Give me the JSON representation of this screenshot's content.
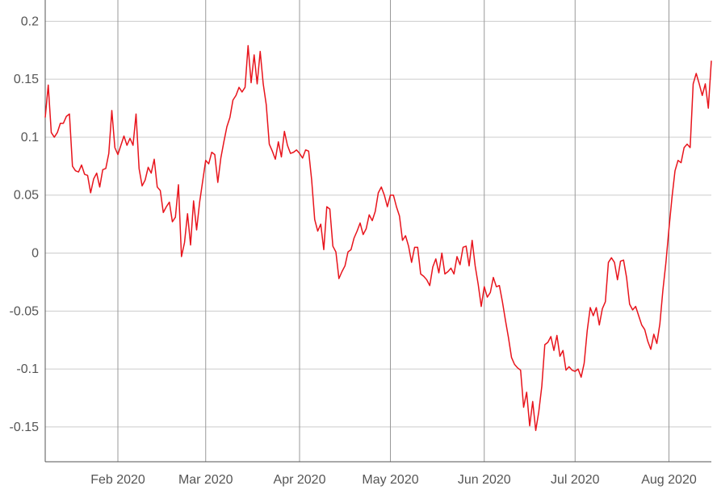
{
  "chart_data": {
    "type": "line",
    "title": "",
    "xlabel": "",
    "ylabel": "",
    "grid": true,
    "legend": "none",
    "line_color": "#e8141c",
    "grid_color": "#cccccc",
    "month_grid_color": "#999999",
    "axis_color": "#555555",
    "xlim": [
      "2020-01-08",
      "2020-08-09"
    ],
    "ylim": [
      -0.18,
      0.21
    ],
    "y_ticks": [
      {
        "value": 0.2,
        "label": "0.2"
      },
      {
        "value": 0.15,
        "label": "0.15"
      },
      {
        "value": 0.1,
        "label": "0.1"
      },
      {
        "value": 0.05,
        "label": "0.05"
      },
      {
        "value": 0,
        "label": "0"
      },
      {
        "value": -0.05,
        "label": "-0.05"
      },
      {
        "value": -0.1,
        "label": "-0.1"
      },
      {
        "value": -0.15,
        "label": "-0.15"
      }
    ],
    "x_ticks": [
      {
        "value": "2020-02-01",
        "label": "Feb 2020"
      },
      {
        "value": "2020-03-01",
        "label": "Mar 2020"
      },
      {
        "value": "2020-04-01",
        "label": "Apr 2020"
      },
      {
        "value": "2020-05-01",
        "label": "May 2020"
      },
      {
        "value": "2020-06-01",
        "label": "Jun 2020"
      },
      {
        "value": "2020-07-01",
        "label": "Jul 2020"
      },
      {
        "value": "2020-08-01",
        "label": "Aug 2020"
      }
    ],
    "series": [
      {
        "color": "#e8141c",
        "points": [
          [
            "2020-01-08",
            0.117
          ],
          [
            "2020-01-09",
            0.145
          ],
          [
            "2020-01-10",
            0.104
          ],
          [
            "2020-01-11",
            0.1
          ],
          [
            "2020-01-12",
            0.104
          ],
          [
            "2020-01-13",
            0.112
          ],
          [
            "2020-01-14",
            0.112
          ],
          [
            "2020-01-15",
            0.118
          ],
          [
            "2020-01-16",
            0.12
          ],
          [
            "2020-01-17",
            0.075
          ],
          [
            "2020-01-18",
            0.071
          ],
          [
            "2020-01-19",
            0.07
          ],
          [
            "2020-01-20",
            0.076
          ],
          [
            "2020-01-21",
            0.068
          ],
          [
            "2020-01-22",
            0.067
          ],
          [
            "2020-01-23",
            0.052
          ],
          [
            "2020-01-24",
            0.064
          ],
          [
            "2020-01-25",
            0.069
          ],
          [
            "2020-01-26",
            0.057
          ],
          [
            "2020-01-27",
            0.072
          ],
          [
            "2020-01-28",
            0.073
          ],
          [
            "2020-01-29",
            0.086
          ],
          [
            "2020-01-30",
            0.123
          ],
          [
            "2020-01-31",
            0.091
          ],
          [
            "2020-02-01",
            0.085
          ],
          [
            "2020-02-02",
            0.093
          ],
          [
            "2020-02-03",
            0.101
          ],
          [
            "2020-02-04",
            0.093
          ],
          [
            "2020-02-05",
            0.099
          ],
          [
            "2020-02-06",
            0.093
          ],
          [
            "2020-02-07",
            0.12
          ],
          [
            "2020-02-08",
            0.073
          ],
          [
            "2020-02-09",
            0.058
          ],
          [
            "2020-02-10",
            0.063
          ],
          [
            "2020-02-11",
            0.074
          ],
          [
            "2020-02-12",
            0.069
          ],
          [
            "2020-02-13",
            0.081
          ],
          [
            "2020-02-14",
            0.057
          ],
          [
            "2020-02-15",
            0.054
          ],
          [
            "2020-02-16",
            0.035
          ],
          [
            "2020-02-17",
            0.04
          ],
          [
            "2020-02-18",
            0.044
          ],
          [
            "2020-02-19",
            0.027
          ],
          [
            "2020-02-20",
            0.031
          ],
          [
            "2020-02-21",
            0.059
          ],
          [
            "2020-02-22",
            -0.003
          ],
          [
            "2020-02-23",
            0.009
          ],
          [
            "2020-02-24",
            0.034
          ],
          [
            "2020-02-25",
            0.007
          ],
          [
            "2020-02-26",
            0.045
          ],
          [
            "2020-02-27",
            0.02
          ],
          [
            "2020-02-28",
            0.044
          ],
          [
            "2020-02-29",
            0.062
          ],
          [
            "2020-03-01",
            0.08
          ],
          [
            "2020-03-02",
            0.077
          ],
          [
            "2020-03-03",
            0.087
          ],
          [
            "2020-03-04",
            0.085
          ],
          [
            "2020-03-05",
            0.061
          ],
          [
            "2020-03-06",
            0.082
          ],
          [
            "2020-03-07",
            0.096
          ],
          [
            "2020-03-08",
            0.109
          ],
          [
            "2020-03-09",
            0.117
          ],
          [
            "2020-03-10",
            0.132
          ],
          [
            "2020-03-11",
            0.136
          ],
          [
            "2020-03-12",
            0.143
          ],
          [
            "2020-03-13",
            0.139
          ],
          [
            "2020-03-14",
            0.143
          ],
          [
            "2020-03-15",
            0.179
          ],
          [
            "2020-03-16",
            0.147
          ],
          [
            "2020-03-17",
            0.171
          ],
          [
            "2020-03-18",
            0.146
          ],
          [
            "2020-03-19",
            0.174
          ],
          [
            "2020-03-20",
            0.146
          ],
          [
            "2020-03-21",
            0.128
          ],
          [
            "2020-03-22",
            0.094
          ],
          [
            "2020-03-23",
            0.088
          ],
          [
            "2020-03-24",
            0.081
          ],
          [
            "2020-03-25",
            0.096
          ],
          [
            "2020-03-26",
            0.083
          ],
          [
            "2020-03-27",
            0.105
          ],
          [
            "2020-03-28",
            0.093
          ],
          [
            "2020-03-29",
            0.086
          ],
          [
            "2020-03-30",
            0.087
          ],
          [
            "2020-03-31",
            0.089
          ],
          [
            "2020-04-01",
            0.086
          ],
          [
            "2020-04-02",
            0.082
          ],
          [
            "2020-04-03",
            0.089
          ],
          [
            "2020-04-04",
            0.088
          ],
          [
            "2020-04-05",
            0.063
          ],
          [
            "2020-04-06",
            0.029
          ],
          [
            "2020-04-07",
            0.019
          ],
          [
            "2020-04-08",
            0.025
          ],
          [
            "2020-04-09",
            0.003
          ],
          [
            "2020-04-10",
            0.04
          ],
          [
            "2020-04-11",
            0.038
          ],
          [
            "2020-04-12",
            0.006
          ],
          [
            "2020-04-13",
            0.001
          ],
          [
            "2020-04-14",
            -0.022
          ],
          [
            "2020-04-15",
            -0.016
          ],
          [
            "2020-04-16",
            -0.011
          ],
          [
            "2020-04-17",
            0.001
          ],
          [
            "2020-04-18",
            0.003
          ],
          [
            "2020-04-19",
            0.013
          ],
          [
            "2020-04-20",
            0.019
          ],
          [
            "2020-04-21",
            0.026
          ],
          [
            "2020-04-22",
            0.016
          ],
          [
            "2020-04-23",
            0.021
          ],
          [
            "2020-04-24",
            0.033
          ],
          [
            "2020-04-25",
            0.028
          ],
          [
            "2020-04-26",
            0.036
          ],
          [
            "2020-04-27",
            0.052
          ],
          [
            "2020-04-28",
            0.057
          ],
          [
            "2020-04-29",
            0.05
          ],
          [
            "2020-04-30",
            0.04
          ],
          [
            "2020-05-01",
            0.05
          ],
          [
            "2020-05-02",
            0.05
          ],
          [
            "2020-05-03",
            0.04
          ],
          [
            "2020-05-04",
            0.032
          ],
          [
            "2020-05-05",
            0.011
          ],
          [
            "2020-05-06",
            0.015
          ],
          [
            "2020-05-07",
            0.006
          ],
          [
            "2020-05-08",
            -0.008
          ],
          [
            "2020-05-09",
            0.005
          ],
          [
            "2020-05-10",
            0.005
          ],
          [
            "2020-05-11",
            -0.018
          ],
          [
            "2020-05-12",
            -0.02
          ],
          [
            "2020-05-13",
            -0.023
          ],
          [
            "2020-05-14",
            -0.028
          ],
          [
            "2020-05-15",
            -0.012
          ],
          [
            "2020-05-16",
            -0.005
          ],
          [
            "2020-05-17",
            -0.017
          ],
          [
            "2020-05-18",
            0.0
          ],
          [
            "2020-05-19",
            -0.018
          ],
          [
            "2020-05-20",
            -0.016
          ],
          [
            "2020-05-21",
            -0.013
          ],
          [
            "2020-05-22",
            -0.018
          ],
          [
            "2020-05-23",
            -0.003
          ],
          [
            "2020-05-24",
            -0.01
          ],
          [
            "2020-05-25",
            0.005
          ],
          [
            "2020-05-26",
            0.006
          ],
          [
            "2020-05-27",
            -0.011
          ],
          [
            "2020-05-28",
            0.011
          ],
          [
            "2020-05-29",
            -0.011
          ],
          [
            "2020-05-30",
            -0.027
          ],
          [
            "2020-05-31",
            -0.046
          ],
          [
            "2020-06-01",
            -0.029
          ],
          [
            "2020-06-02",
            -0.038
          ],
          [
            "2020-06-03",
            -0.034
          ],
          [
            "2020-06-04",
            -0.021
          ],
          [
            "2020-06-05",
            -0.029
          ],
          [
            "2020-06-06",
            -0.028
          ],
          [
            "2020-06-07",
            -0.042
          ],
          [
            "2020-06-08",
            -0.058
          ],
          [
            "2020-06-09",
            -0.073
          ],
          [
            "2020-06-10",
            -0.09
          ],
          [
            "2020-06-11",
            -0.096
          ],
          [
            "2020-06-12",
            -0.099
          ],
          [
            "2020-06-13",
            -0.101
          ],
          [
            "2020-06-14",
            -0.133
          ],
          [
            "2020-06-15",
            -0.12
          ],
          [
            "2020-06-16",
            -0.149
          ],
          [
            "2020-06-17",
            -0.128
          ],
          [
            "2020-06-18",
            -0.153
          ],
          [
            "2020-06-19",
            -0.137
          ],
          [
            "2020-06-20",
            -0.115
          ],
          [
            "2020-06-21",
            -0.079
          ],
          [
            "2020-06-22",
            -0.077
          ],
          [
            "2020-06-23",
            -0.072
          ],
          [
            "2020-06-24",
            -0.084
          ],
          [
            "2020-06-25",
            -0.071
          ],
          [
            "2020-06-26",
            -0.089
          ],
          [
            "2020-06-27",
            -0.084
          ],
          [
            "2020-06-28",
            -0.101
          ],
          [
            "2020-06-29",
            -0.098
          ],
          [
            "2020-06-30",
            -0.101
          ],
          [
            "2020-07-01",
            -0.102
          ],
          [
            "2020-07-02",
            -0.1
          ],
          [
            "2020-07-03",
            -0.107
          ],
          [
            "2020-07-04",
            -0.095
          ],
          [
            "2020-07-05",
            -0.067
          ],
          [
            "2020-07-06",
            -0.047
          ],
          [
            "2020-07-07",
            -0.054
          ],
          [
            "2020-07-08",
            -0.047
          ],
          [
            "2020-07-09",
            -0.062
          ],
          [
            "2020-07-10",
            -0.048
          ],
          [
            "2020-07-11",
            -0.042
          ],
          [
            "2020-07-12",
            -0.008
          ],
          [
            "2020-07-13",
            -0.004
          ],
          [
            "2020-07-14",
            -0.008
          ],
          [
            "2020-07-15",
            -0.023
          ],
          [
            "2020-07-16",
            -0.007
          ],
          [
            "2020-07-17",
            -0.006
          ],
          [
            "2020-07-18",
            -0.021
          ],
          [
            "2020-07-19",
            -0.044
          ],
          [
            "2020-07-20",
            -0.049
          ],
          [
            "2020-07-21",
            -0.046
          ],
          [
            "2020-07-22",
            -0.054
          ],
          [
            "2020-07-23",
            -0.062
          ],
          [
            "2020-07-24",
            -0.066
          ],
          [
            "2020-07-25",
            -0.076
          ],
          [
            "2020-07-26",
            -0.083
          ],
          [
            "2020-07-27",
            -0.07
          ],
          [
            "2020-07-28",
            -0.078
          ],
          [
            "2020-07-29",
            -0.061
          ],
          [
            "2020-07-30",
            -0.032
          ],
          [
            "2020-07-31",
            -0.008
          ],
          [
            "2020-08-01",
            0.021
          ],
          [
            "2020-08-02",
            0.048
          ],
          [
            "2020-08-03",
            0.071
          ],
          [
            "2020-08-04",
            0.08
          ],
          [
            "2020-08-05",
            0.078
          ],
          [
            "2020-08-06",
            0.091
          ],
          [
            "2020-08-07",
            0.094
          ],
          [
            "2020-08-08",
            0.091
          ],
          [
            "2020-08-09",
            0.146
          ],
          [
            "2020-08-10",
            0.155
          ],
          [
            "2020-08-11",
            0.146
          ],
          [
            "2020-08-12",
            0.136
          ],
          [
            "2020-08-13",
            0.146
          ],
          [
            "2020-08-14",
            0.125
          ],
          [
            "2020-08-15",
            0.166
          ]
        ]
      }
    ]
  }
}
